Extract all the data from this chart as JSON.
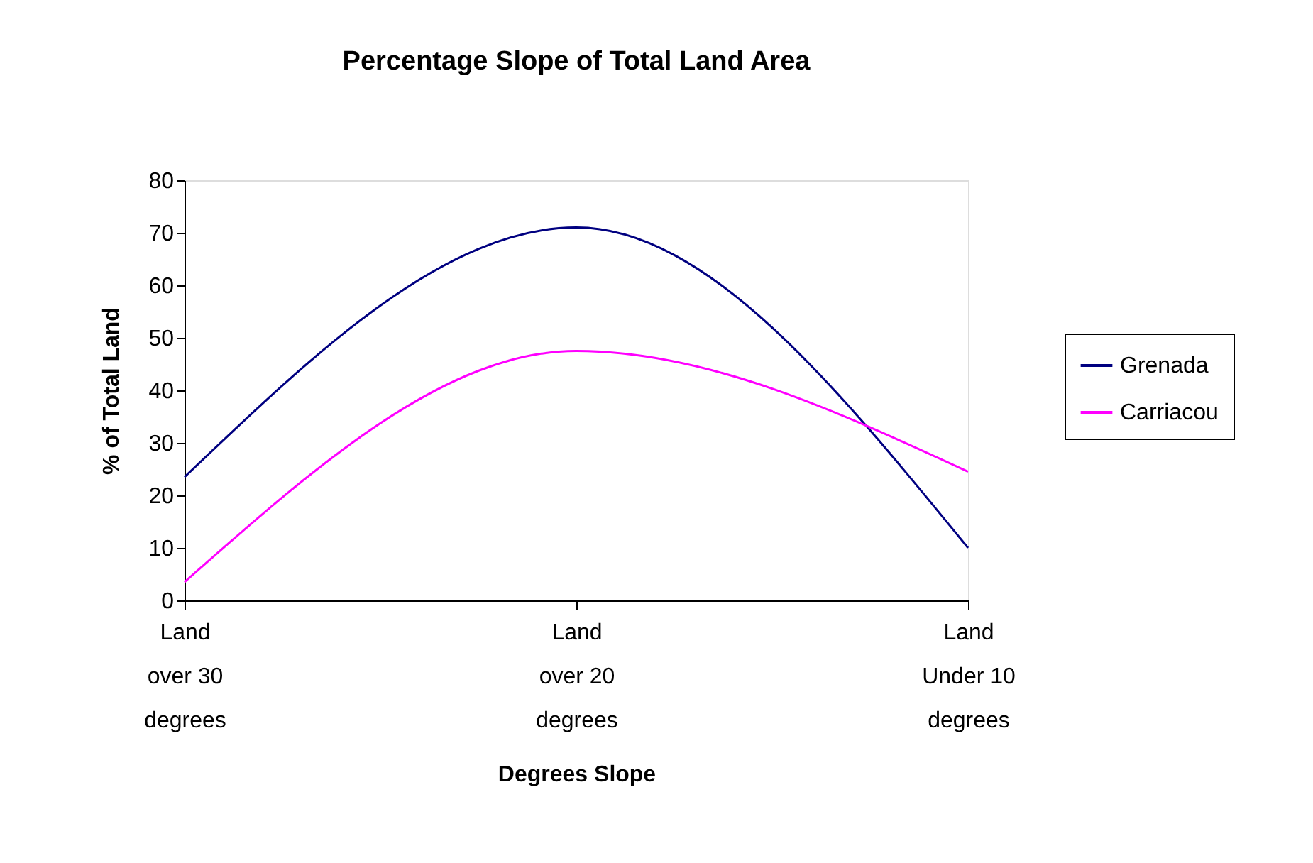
{
  "chart_data": {
    "type": "line",
    "title": "Percentage Slope of Total Land Area",
    "xlabel": "Degrees Slope",
    "ylabel": "% of Total Land",
    "categories": [
      "Land\nover 30\ndegrees",
      "Land\nover 20\ndegrees",
      "Land\nUnder 10\ndegrees"
    ],
    "series": [
      {
        "name": "Grenada",
        "color": "#000080",
        "values": [
          23.5,
          71,
          10
        ]
      },
      {
        "name": "Carriacou",
        "color": "#ff00ff",
        "values": [
          3.5,
          47.5,
          24.5
        ]
      }
    ],
    "ylim": [
      0,
      80
    ],
    "yticks": [
      0,
      10,
      20,
      30,
      40,
      50,
      60,
      70,
      80
    ],
    "grid": false,
    "legend": "right",
    "line_style": "solid",
    "marker": "none"
  }
}
